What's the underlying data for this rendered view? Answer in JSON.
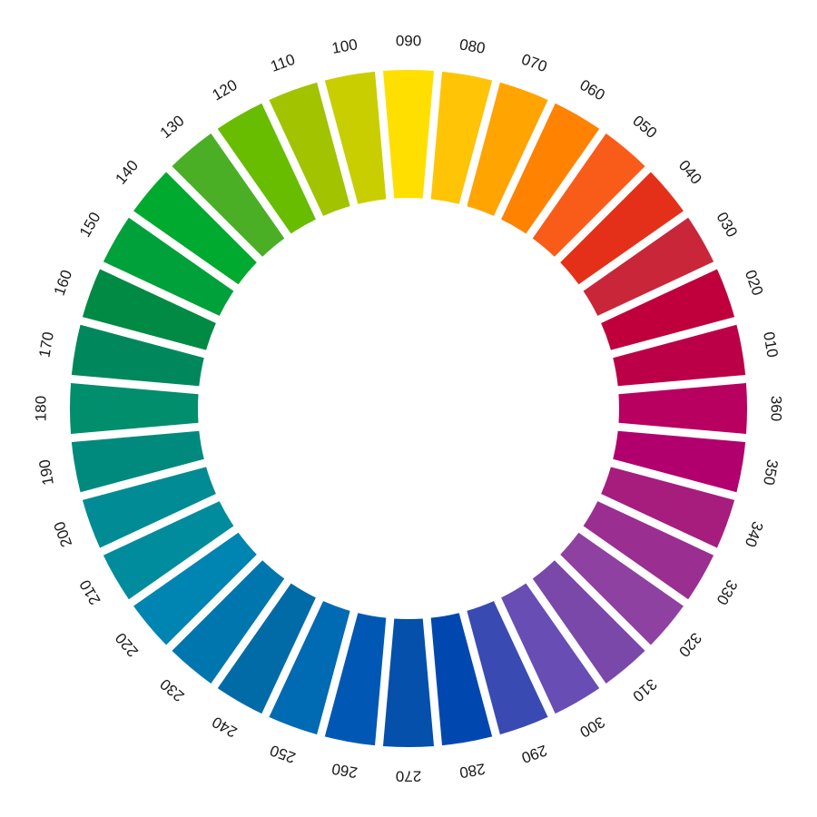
{
  "segments": [
    {
      "label": "090",
      "color": "#FFDF00"
    },
    {
      "label": "080",
      "color": "#FFC406"
    },
    {
      "label": "070",
      "color": "#FFA400"
    },
    {
      "label": "060",
      "color": "#FF8200"
    },
    {
      "label": "050",
      "color": "#F95C19"
    },
    {
      "label": "040",
      "color": "#E53019"
    },
    {
      "label": "030",
      "color": "#C9263A"
    },
    {
      "label": "020",
      "color": "#BF003D"
    },
    {
      "label": "010",
      "color": "#BC0048"
    },
    {
      "label": "360",
      "color": "#B70060"
    },
    {
      "label": "350",
      "color": "#B1006E"
    },
    {
      "label": "340",
      "color": "#A61D7E"
    },
    {
      "label": "330",
      "color": "#9A2E91"
    },
    {
      "label": "320",
      "color": "#8E41A0"
    },
    {
      "label": "310",
      "color": "#7A48A9"
    },
    {
      "label": "300",
      "color": "#674DB4"
    },
    {
      "label": "290",
      "color": "#3A4AB3"
    },
    {
      "label": "280",
      "color": "#0048B0"
    },
    {
      "label": "270",
      "color": "#0450AA"
    },
    {
      "label": "260",
      "color": "#0058B4"
    },
    {
      "label": "250",
      "color": "#006AB2"
    },
    {
      "label": "240",
      "color": "#006BA6"
    },
    {
      "label": "230",
      "color": "#0076AE"
    },
    {
      "label": "220",
      "color": "#0084B2"
    },
    {
      "label": "210",
      "color": "#008C9D"
    },
    {
      "label": "200",
      "color": "#008B95"
    },
    {
      "label": "190",
      "color": "#008A7E"
    },
    {
      "label": "180",
      "color": "#008E6C"
    },
    {
      "label": "170",
      "color": "#00885C"
    },
    {
      "label": "160",
      "color": "#008A44"
    },
    {
      "label": "150",
      "color": "#00A03A"
    },
    {
      "label": "140",
      "color": "#00AA2E"
    },
    {
      "label": "130",
      "color": "#4AAF25"
    },
    {
      "label": "120",
      "color": "#68BD00"
    },
    {
      "label": "110",
      "color": "#A1C300"
    },
    {
      "label": "100",
      "color": "#C8CE00"
    }
  ]
}
